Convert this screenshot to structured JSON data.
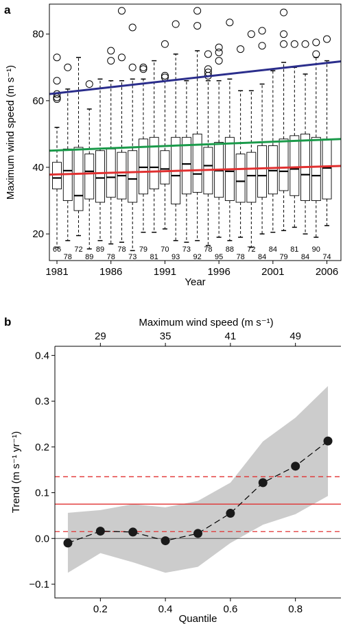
{
  "chart_data": [
    {
      "panel": "a",
      "type": "box",
      "xlabel": "Year",
      "ylabel": "Maximum wind speed (m s⁻¹)",
      "xlim": [
        1980.3,
        2007.3
      ],
      "ylim": [
        12,
        89
      ],
      "x_ticks": [
        1981,
        1986,
        1991,
        1996,
        2001,
        2006
      ],
      "y_ticks": [
        20,
        40,
        60,
        80
      ],
      "boxes": [
        {
          "year": 1981,
          "q1": 33.5,
          "median": 36.8,
          "q3": 41.5,
          "whisker_low": 16,
          "whisker_high": 52,
          "outliers": [
            73,
            66,
            62,
            61,
            60.5
          ],
          "count": 66
        },
        {
          "year": 1982,
          "q1": 30,
          "median": 39,
          "q3": 45.5,
          "whisker_low": 18,
          "whisker_high": 63.5,
          "outliers": [
            70
          ],
          "count": 78
        },
        {
          "year": 1983,
          "q1": 27,
          "median": 31.5,
          "q3": 46,
          "whisker_low": 19.5,
          "whisker_high": 73,
          "outliers": [],
          "count": 72
        },
        {
          "year": 1984,
          "q1": 30.5,
          "median": 38.8,
          "q3": 44,
          "whisker_low": 15.5,
          "whisker_high": 57.5,
          "outliers": [
            65
          ],
          "count": 89
        },
        {
          "year": 1985,
          "q1": 29.5,
          "median": 36.8,
          "q3": 45,
          "whisker_low": 18,
          "whisker_high": 66.5,
          "outliers": [],
          "count": 89
        },
        {
          "year": 1986,
          "q1": 31,
          "median": 37,
          "q3": 45.5,
          "whisker_low": 17,
          "whisker_high": 66,
          "outliers": [
            75,
            72
          ],
          "count": 78
        },
        {
          "year": 1987,
          "q1": 30.5,
          "median": 37.5,
          "q3": 44.5,
          "whisker_low": 17.5,
          "whisker_high": 66,
          "outliers": [
            87,
            73
          ],
          "count": 78
        },
        {
          "year": 1988,
          "q1": 29.5,
          "median": 36.5,
          "q3": 45,
          "whisker_low": 15,
          "whisker_high": 66.5,
          "outliers": [
            82,
            70
          ],
          "count": 73
        },
        {
          "year": 1989,
          "q1": 32,
          "median": 40,
          "q3": 48.5,
          "whisker_low": 20.5,
          "whisker_high": 66.5,
          "outliers": [
            70,
            69.5
          ],
          "count": 79
        },
        {
          "year": 1990,
          "q1": 33.5,
          "median": 40,
          "q3": 49,
          "whisker_low": 20.5,
          "whisker_high": 72,
          "outliers": [],
          "count": 81
        },
        {
          "year": 1991,
          "q1": 35,
          "median": 39.5,
          "q3": 45,
          "whisker_low": 21.5,
          "whisker_high": 66,
          "outliers": [
            77,
            67.5,
            67
          ],
          "count": 70
        },
        {
          "year": 1992,
          "q1": 29,
          "median": 37.5,
          "q3": 49,
          "whisker_low": 18,
          "whisker_high": 74,
          "outliers": [
            83
          ],
          "count": 93
        },
        {
          "year": 1993,
          "q1": 32,
          "median": 41,
          "q3": 49,
          "whisker_low": 17.5,
          "whisker_high": 66,
          "outliers": [],
          "count": 73
        },
        {
          "year": 1994,
          "q1": 32.5,
          "median": 38,
          "q3": 50,
          "whisker_low": 18,
          "whisker_high": 75,
          "outliers": [
            87,
            82.5
          ],
          "count": 92
        },
        {
          "year": 1995,
          "q1": 32,
          "median": 40.5,
          "q3": 46,
          "whisker_low": 16.5,
          "whisker_high": 66,
          "outliers": [
            74,
            69.5,
            68.5,
            67.5
          ],
          "count": 78
        },
        {
          "year": 1996,
          "q1": 31,
          "median": 39,
          "q3": 47.5,
          "whisker_low": 19,
          "whisker_high": 66,
          "outliers": [
            76,
            74.5,
            72
          ],
          "count": 95
        },
        {
          "year": 1997,
          "q1": 30,
          "median": 38.8,
          "q3": 49,
          "whisker_low": 18,
          "whisker_high": 66.5,
          "outliers": [
            83.5
          ],
          "count": 88
        },
        {
          "year": 1998,
          "q1": 29.5,
          "median": 35.8,
          "q3": 44,
          "whisker_low": 19,
          "whisker_high": 63,
          "outliers": [
            75.5
          ],
          "count": 78
        },
        {
          "year": 1999,
          "q1": 29.5,
          "median": 37.5,
          "q3": 44.5,
          "whisker_low": 16,
          "whisker_high": 63,
          "outliers": [
            80
          ],
          "count": 72
        },
        {
          "year": 2000,
          "q1": 31,
          "median": 37.5,
          "q3": 46.5,
          "whisker_low": 20,
          "whisker_high": 65,
          "outliers": [
            81,
            76.5
          ],
          "count": 84
        },
        {
          "year": 2001,
          "q1": 32,
          "median": 39,
          "q3": 46.5,
          "whisker_low": 20.5,
          "whisker_high": 69,
          "outliers": [],
          "count": 84
        },
        {
          "year": 2002,
          "q1": 33,
          "median": 38.8,
          "q3": 48.5,
          "whisker_low": 21,
          "whisker_high": 71.5,
          "outliers": [
            86.5,
            80,
            77
          ],
          "count": 79
        },
        {
          "year": 2003,
          "q1": 31.5,
          "median": 39.5,
          "q3": 49.5,
          "whisker_low": 22,
          "whisker_high": 70,
          "outliers": [
            77
          ],
          "count": 81
        },
        {
          "year": 2004,
          "q1": 30,
          "median": 37.8,
          "q3": 50,
          "whisker_low": 20,
          "whisker_high": 68,
          "outliers": [
            77
          ],
          "count": 84
        },
        {
          "year": 2005,
          "q1": 30,
          "median": 37.5,
          "q3": 49,
          "whisker_low": 19,
          "whisker_high": 73,
          "outliers": [
            77.5,
            74
          ],
          "count": 90
        },
        {
          "year": 2006,
          "q1": 30.5,
          "median": 39.8,
          "q3": 48.5,
          "whisker_low": 22.5,
          "whisker_high": 72,
          "outliers": [
            78.5
          ],
          "count": 74
        }
      ],
      "trend_lines": [
        {
          "color": "#2b2e8c",
          "start": [
            1980.3,
            62
          ],
          "end": [
            2007.3,
            71.8
          ]
        },
        {
          "color": "#1a9a4a",
          "start": [
            1980.3,
            45
          ],
          "end": [
            2007.3,
            48.5
          ]
        },
        {
          "color": "#e03030",
          "start": [
            1980.3,
            37.8
          ],
          "end": [
            2007.3,
            40.4
          ]
        }
      ]
    },
    {
      "panel": "b",
      "type": "line",
      "xlabel": "Quantile",
      "ylabel": "Trend (m s⁻¹ yr⁻¹)",
      "top_xlabel": "Maximum wind speed (m s⁻¹)",
      "xlim": [
        0.06,
        0.94
      ],
      "ylim": [
        -0.13,
        0.42
      ],
      "x_ticks": [
        "0.2",
        "0.4",
        "0.6",
        "0.8"
      ],
      "x_tick_values": [
        0.2,
        0.4,
        0.6,
        0.8
      ],
      "y_ticks": [
        "−0.1",
        "0.0",
        "0.1",
        "0.2",
        "0.3",
        "0.4"
      ],
      "y_tick_values": [
        -0.1,
        0.0,
        0.1,
        0.2,
        0.3,
        0.4
      ],
      "top_ticks": [
        "29",
        "35",
        "41",
        "49"
      ],
      "top_tick_positions": [
        0.2,
        0.4,
        0.6,
        0.8
      ],
      "x": [
        0.1,
        0.2,
        0.3,
        0.4,
        0.5,
        0.6,
        0.7,
        0.8,
        0.9
      ],
      "trend": [
        -0.01,
        0.016,
        0.014,
        -0.005,
        0.011,
        0.055,
        0.122,
        0.158,
        0.213
      ],
      "band_lower": [
        -0.075,
        -0.032,
        -0.052,
        -0.075,
        -0.062,
        -0.01,
        0.03,
        0.053,
        0.093
      ],
      "band_upper": [
        0.056,
        0.062,
        0.075,
        0.068,
        0.082,
        0.122,
        0.212,
        0.264,
        0.333
      ],
      "reference_lines": {
        "mean": 0.075,
        "ci_low": 0.015,
        "ci_high": 0.135,
        "zero": 0.0
      },
      "colors": {
        "band": "#cccccc",
        "reference": "#e03030",
        "zero": "#555555",
        "points": "#1a1a1a"
      }
    }
  ],
  "labels": {
    "panel_a": "a",
    "panel_b": "b"
  }
}
